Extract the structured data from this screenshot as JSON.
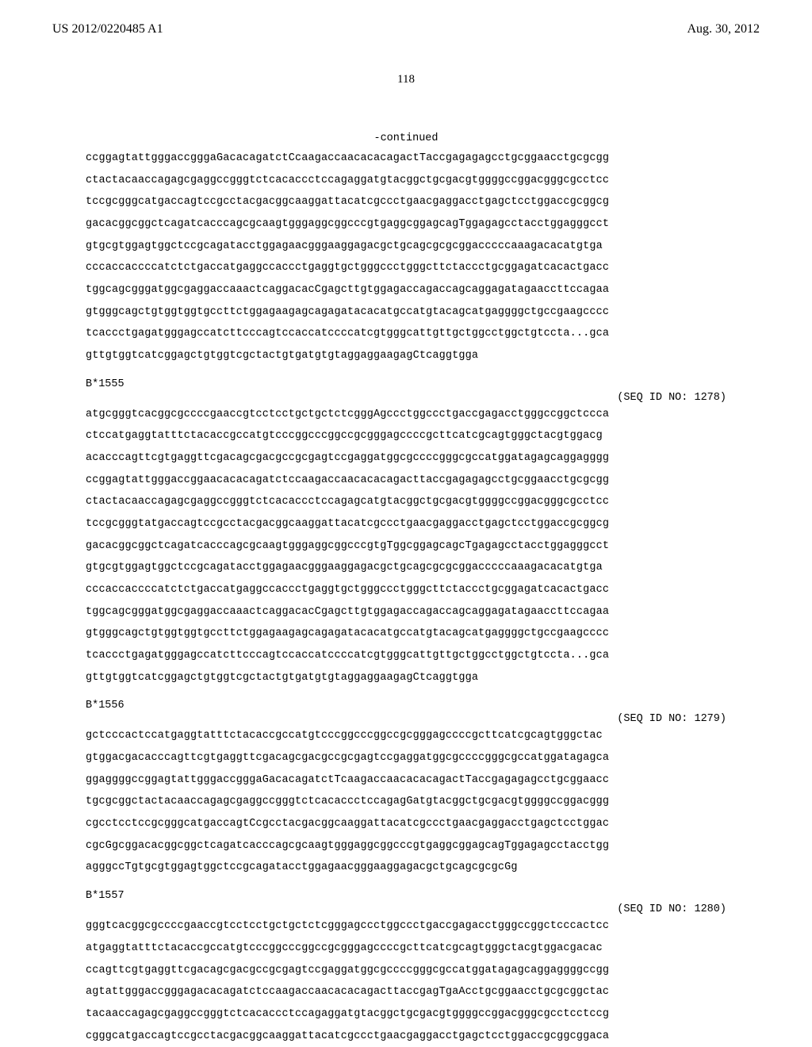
{
  "header": {
    "pub_number": "US 2012/0220485 A1",
    "pub_date": "Aug. 30, 2012"
  },
  "page_number": "118",
  "continued_label": "-continued",
  "blocks": [
    {
      "lines": [
        "ccggagtattgggaccgggaGacacagatctCcaagaccaacacacagactTaccgagagagcctgcggaacctgcgcgg",
        "ctactacaaccagagcgaggccgggtctcacaccctccagaggatgtacggctgcgacgtggggccggacgggcgcctcc",
        "tccgcgggcatgaccagtccgcctacgacggcaaggattacatcgccctgaacgaggacctgagctcctggaccgcggcg",
        "gacacggcggctcagatcacccagcgcaagtgggaggcggcccgtgaggcggagcagTggagagcctacctggagggcct",
        "gtgcgtggagtggctccgcagatacctggagaacgggaaggagacgctgcagcgcgcggacccccaaagacacatgtga",
        "cccaccaccccatctctgaccatgaggccaccctgaggtgctgggccctgggcttctaccctgcggagatcacactgacc",
        "tggcagcgggatggcgaggaccaaactcaggacacCgagcttgtggagaccagaccagcaggagatagaaccttccagaa",
        "gtgggcagctgtggtggtgccttctggagaagagcagagatacacatgccatgtacagcatgaggggctgccgaagcccc",
        "tcaccctgagatgggagccatcttcccagtccaccatccccatcgtgggcattgttgctggcctggctgtccta...gca",
        "gttgtggtcatcggagctgtggtcgctactgtgatgtgtaggaggaagagCtcaggtgga"
      ]
    },
    {
      "label": "B*1555",
      "seq_id": "(SEQ ID NO: 1278)",
      "lines": [
        "atgcgggtcacggcgccccgaaccgtcctcctgctgctctcgggAgccctggccctgaccgagacctgggccggctccca",
        "ctccatgaggtatttctacaccgccatgtcccggcccggccgcgggagccccgcttcatcgcagtgggctacgtggacg",
        "acacccagttcgtgaggttcgacagcgacgccgcgagtccgaggatggcgccccgggcgccatggatagagcaggagggg",
        "ccggagtattgggaccggaacacacagatctccaagaccaacacacagacttaccgagagagcctgcggaacctgcgcgg",
        "ctactacaaccagagcgaggccgggtctcacaccctccagagcatgtacggctgcgacgtggggccggacgggcgcctcc",
        "tccgcgggtatgaccagtccgcctacgacggcaaggattacatcgccctgaacgaggacctgagctcctggaccgcggcg",
        "gacacggcggctcagatcacccagcgcaagtgggaggcggcccgtgTggcggagcagcTgagagcctacctggagggcct",
        "gtgcgtggagtggctccgcagatacctggagaacgggaaggagacgctgcagcgcgcggacccccaaagacacatgtga",
        "cccaccaccccatctctgaccatgaggccaccctgaggtgctgggccctgggcttctaccctgcggagatcacactgacc",
        "tggcagcgggatggcgaggaccaaactcaggacacCgagcttgtggagaccagaccagcaggagatagaaccttccagaa",
        "gtgggcagctgtggtggtgccttctggagaagagcagagatacacatgccatgtacagcatgaggggctgccgaagcccc",
        "tcaccctgagatgggagccatcttcccagtccaccatccccatcgtgggcattgttgctggcctggctgtccta...gca",
        "gttgtggtcatcggagctgtggtcgctactgtgatgtgtaggaggaagagCtcaggtgga"
      ]
    },
    {
      "label": "B*1556",
      "seq_id": "(SEQ ID NO: 1279)",
      "lines": [
        "gctcccactccatgaggtatttctacaccgccatgtcccggcccggccgcgggagccccgcttcatcgcagtgggctac",
        "gtggacgacacccagttcgtgaggttcgacagcgacgccgcgagtccgaggatggcgccccgggcgccatggatagagca",
        "ggaggggccggagtattgggaccgggaGacacagatctTcaagaccaacacacagactTaccgagagagcctgcggaacc",
        "tgcgcggctactacaaccagagcgaggccgggtctcacaccctccagagGatgtacggctgcgacgtggggccggacggg",
        "cgcctcctccgcgggcatgaccagtCcgcctacgacggcaaggattacatcgccctgaacgaggacctgagctcctggac",
        "cgcGgcggacacggcggctcagatcacccagcgcaagtgggaggcggcccgtgaggcggagcagTggagagcctacctgg",
        "agggccTgtgcgtggagtggctccgcagatacctggagaacgggaaggagacgctgcagcgcgcGg"
      ]
    },
    {
      "label": "B*1557",
      "seq_id": "(SEQ ID NO: 1280)",
      "lines": [
        "gggtcacggcgccccgaaccgtcctcctgctgctctcgggagccctggccctgaccgagacctgggccggctcccactcc",
        "atgaggtatttctacaccgccatgtcccggcccggccgcgggagccccgcttcatcgcagtgggctacgtggacgacac",
        "ccagttcgtgaggttcgacagcgacgccgcgagtccgaggatggcgccccgggcgccatggatagagcaggaggggccgg",
        "agtattgggaccgggagacacagatctccaagaccaacacacagacttaccgagTgaAcctgcggaacctgcgcggctac",
        "tacaaccagagcgaggccgggtctcacaccctccagaggatgtacggctgcgacgtggggccggacgggcgcctcctccg",
        "cgggcatgaccagtccgcctacgacggcaaggattacatcgccctgaacgaggacctgagctcctggaccgcggcggaca"
      ]
    }
  ]
}
